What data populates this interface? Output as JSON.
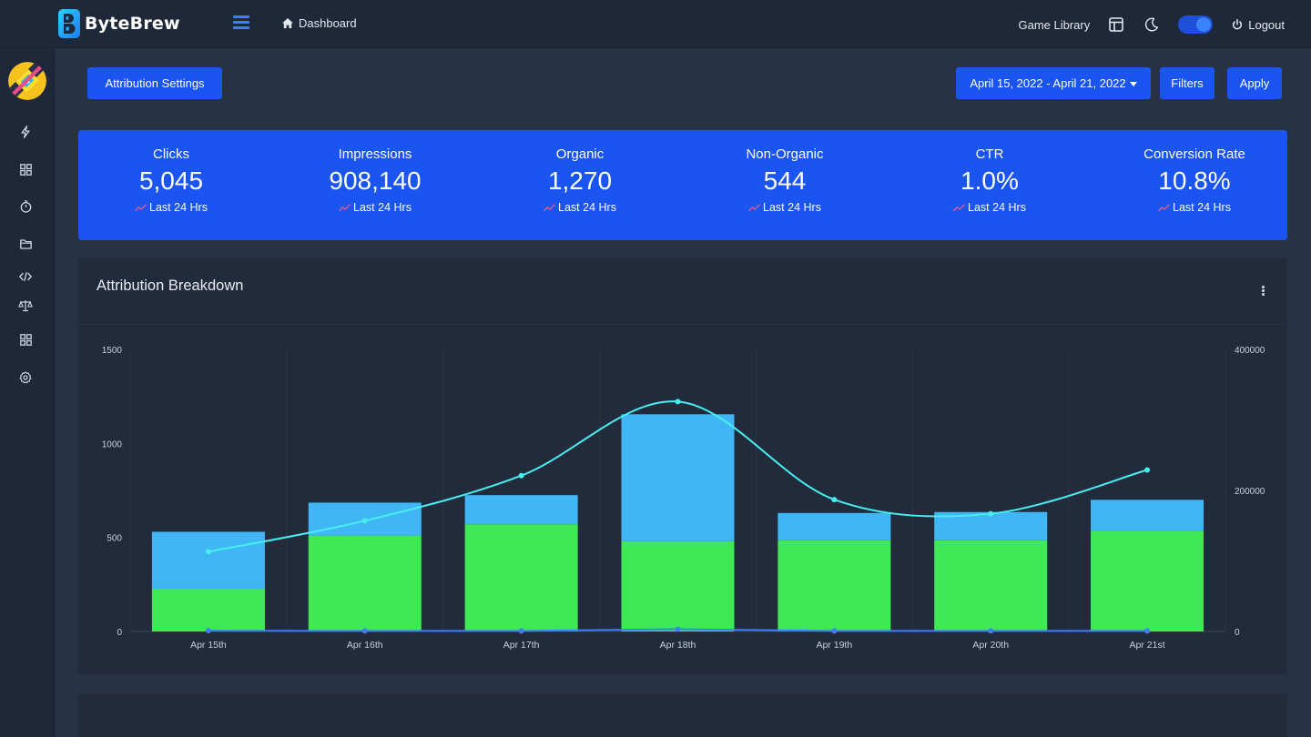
{
  "app": {
    "name": "ByteBrew",
    "breadcrumb": "Dashboard",
    "game_library": "Game Library",
    "logout": "Logout"
  },
  "sidebar": {
    "icons": [
      "bolt-icon",
      "grid-icon",
      "stopwatch-icon",
      "folder-icon",
      "code-icon",
      "scale-icon",
      "grid-2-icon",
      "gear-icon"
    ]
  },
  "toolbar": {
    "attribution_settings": "Attribution Settings",
    "date_range": "April 15, 2022 - April 21, 2022",
    "filters": "Filters",
    "apply": "Apply"
  },
  "stats": [
    {
      "label": "Clicks",
      "value": "5,045",
      "sub": "Last 24 Hrs"
    },
    {
      "label": "Impressions",
      "value": "908,140",
      "sub": "Last 24 Hrs"
    },
    {
      "label": "Organic",
      "value": "1,270",
      "sub": "Last 24 Hrs"
    },
    {
      "label": "Non-Organic",
      "value": "544",
      "sub": "Last 24 Hrs"
    },
    {
      "label": "CTR",
      "value": "1.0%",
      "sub": "Last 24 Hrs"
    },
    {
      "label": "Conversion Rate",
      "value": "10.8%",
      "sub": "Last 24 Hrs"
    }
  ],
  "colors": {
    "accent": "#1a55f2",
    "trend": "#ff5b7a",
    "green_bars": "#3fe955",
    "blue_bars": "#41b6f5",
    "cyan_line": "#47eef0",
    "low_line": "#3f7ef7"
  },
  "chart_title": "Attribution Breakdown",
  "chart_data": {
    "type": "bar",
    "categories": [
      "Apr 15th",
      "Apr 16th",
      "Apr 17th",
      "Apr 18th",
      "Apr 19th",
      "Apr 20th",
      "Apr 21st"
    ],
    "stacked": true,
    "y_left": {
      "min": 0,
      "max": 1500,
      "ticks": [
        "0",
        "500",
        "1000",
        "1500"
      ]
    },
    "y_right": {
      "min": 0,
      "max": 400000,
      "ticks": [
        "0",
        "200000",
        "400000"
      ]
    },
    "series": [
      {
        "type": "bar",
        "axis": "left",
        "color": "#3fe955",
        "values": [
          225,
          510,
          570,
          480,
          485,
          485,
          535
        ]
      },
      {
        "type": "bar",
        "axis": "left",
        "color": "#41b6f5",
        "values": [
          305,
          175,
          155,
          675,
          145,
          150,
          165
        ]
      },
      {
        "type": "line",
        "axis": "right",
        "color": "#47eef0",
        "smooth": true,
        "values": [
          113000,
          157000,
          221000,
          326000,
          187000,
          167000,
          229000
        ]
      },
      {
        "type": "line",
        "axis": "left",
        "color": "#3f7ef7",
        "values": [
          4,
          3,
          3,
          12,
          3,
          3,
          3
        ]
      }
    ],
    "grid": true,
    "legend": "none"
  }
}
